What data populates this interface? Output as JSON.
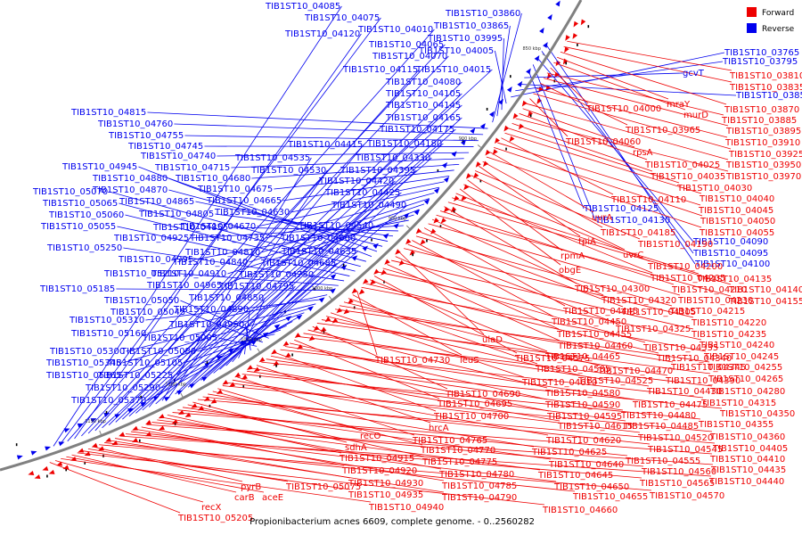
{
  "caption": "Propionibacterium acnes 6609, complete genome. - 0..2560282",
  "legend": [
    {
      "label": "Forward",
      "color": "#ee0000"
    },
    {
      "label": "Reverse",
      "color": "#0000ee"
    }
  ],
  "colors": {
    "forward": "#ee0000",
    "reverse": "#0000ee",
    "backbone": "#808080"
  },
  "tick_labels": [
    "850 kbp",
    "900 kbp",
    "950 kbp",
    "1000 kbp",
    "1050 kbp",
    "1100 kbp",
    "1150 kbp"
  ],
  "reverse_labels": [
    "TIB1ST10_04085",
    "TIB1ST10_04075",
    "TIB1ST10_04010",
    "TIB1ST10_04120",
    "TIB1ST10_04065",
    "TIB1ST10_04070",
    "TIB1ST10_04115",
    "TIB1ST10_04015",
    "TIB1ST10_04080",
    "TIB1ST10_04105",
    "TIB1ST10_04145",
    "TIB1ST10_04165",
    "TIB1ST10_04175",
    "TIB1ST10_04180",
    "TIB1ST10_04415",
    "TIB1ST10_04330",
    "TIB1ST10_04535",
    "TIB1ST10_04530",
    "TIB1ST10_04395",
    "TIB1ST10_04420",
    "TIB1ST10_04425",
    "TIB1ST10_04490",
    "TIB1ST10_04540",
    "TIB1ST10_04600",
    "TIB1ST10_04635",
    "TIB1ST10_04685",
    "TIB1ST10_04750",
    "TIB1ST10_04795",
    "TIB1ST10_04850",
    "TIB1ST10_04890",
    "TIB1ST10_04950",
    "TIB1ST10_05005",
    "TIB1ST10_05045",
    "TIB1ST10_05050",
    "TIB1ST10_05080",
    "TIB1ST10_05105",
    "TIB1ST10_05225",
    "TIB1ST10_05290",
    "TIB1ST10_05370",
    "TIB1ST10_05365",
    "TIB1ST10_05345",
    "TIB1ST10_05300",
    "TIB1ST10_05310",
    "TIB1ST10_05160",
    "TIB1ST10_05185",
    "TIB1ST10_05210",
    "TIB1ST10_05250",
    "TIB1ST10_05055",
    "TIB1ST10_05060",
    "TIB1ST10_05065",
    "TIB1ST10_05070",
    "TIB1ST10_04945",
    "TIB1ST10_04880",
    "TIB1ST10_04870",
    "TIB1ST10_04865",
    "TIB1ST10_04805",
    "TIB1ST10_04855",
    "TIB1ST10_04925",
    "TIB1ST10_04995",
    "TIB1ST10_04910",
    "TIB1ST10_04965",
    "TIB1ST10_04840",
    "TIB1ST10_04810",
    "TIB1ST10_04735",
    "TIB1ST10_04670",
    "TIB1ST10_04630",
    "TIB1ST10_04665",
    "TIB1ST10_04675",
    "TIB1ST10_04680",
    "TIB1ST10_04715",
    "TIB1ST10_04740",
    "TIB1ST10_04745",
    "TIB1ST10_04755",
    "TIB1ST10_04760",
    "TIB1ST10_04815",
    "TIB1ST10_03860",
    "TIB1ST10_03865",
    "TIB1ST10_03995",
    "TIB1ST10_04005",
    "TIB1ST10_03765",
    "TIB1ST10_03795",
    "TIB1ST10_03855",
    "gcvT",
    "TIB1ST10_04125",
    "TIB1ST10_04130",
    "TIB1ST10_04090",
    "TIB1ST10_04095",
    "TIB1ST10_04100"
  ],
  "forward_labels": [
    "TIB1ST10_03810",
    "TIB1ST10_03835",
    "TIB1ST10_03870",
    "mraY",
    "murD",
    "TIB1ST10_04000",
    "TIB1ST10_03885",
    "TIB1ST10_03895",
    "TIB1ST10_03965",
    "TIB1ST10_03910",
    "TIB1ST10_03925",
    "TIB1ST10_04060",
    "TIB1ST10_03950",
    "rpsA",
    "TIB1ST10_04025",
    "TIB1ST10_03970",
    "TIB1ST10_04035",
    "TIB1ST10_04030",
    "TIB1ST10_04040",
    "TIB1ST10_04110",
    "TIB1ST10_04045",
    "TIB1ST10_04050",
    "uvrA",
    "TIB1ST10_04055",
    "TIB1ST10_04185",
    "tpiA",
    "TIB1ST10_04190",
    "uvrC",
    "rpmA",
    "TIB1ST10_04200",
    "obgE",
    "TIB1ST10_04205",
    "TIB1ST10_04135",
    "TIB1ST10_04140",
    "TIB1ST10_04300",
    "TIB1ST10_04210",
    "TIB1ST10_04155",
    "TIB1ST10_04320",
    "TIB1ST10_04230",
    "TIB1ST10_04445",
    "TIB1ST10_04305",
    "TIB1ST10_04215",
    "TIB1ST10_04450",
    "TIB1ST10_04325",
    "TIB1ST10_04220",
    "ulaD",
    "TIB1ST10_04455",
    "TIB1ST10_04235",
    "TIB1ST10_04460",
    "TIB1ST10_04335",
    "TIB1ST10_04240",
    "TIB1ST10_04575",
    "TIB1ST10_04465",
    "TIB1ST10_04340",
    "TIB1ST10_04245",
    "TIB1ST10_04730",
    "leuS",
    "TIB1ST10_04585",
    "TIB1ST10_04470",
    "TIB1ST10_04345",
    "TIB1ST10_04255",
    "TIB1ST10_04610",
    "TIB1ST10_04525",
    "TIB1ST10_04390",
    "TIB1ST10_04265",
    "TIB1ST10_04690",
    "TIB1ST10_04580",
    "TIB1ST10_04430",
    "TIB1ST10_04280",
    "TIB1ST10_04695",
    "TIB1ST10_04590",
    "TIB1ST10_04475",
    "TIB1ST10_04315",
    "TIB1ST10_04700",
    "TIB1ST10_04595",
    "TIB1ST10_04480",
    "TIB1ST10_04350",
    "hrcA",
    "TIB1ST10_04615",
    "TIB1ST10_04485",
    "TIB1ST10_04355",
    "TIB1ST10_04765",
    "TIB1ST10_04620",
    "TIB1ST10_04520",
    "TIB1ST10_04360",
    "recO",
    "TIB1ST10_04770",
    "TIB1ST10_04625",
    "TIB1ST10_04545",
    "TIB1ST10_04405",
    "sdhA",
    "TIB1ST10_04775",
    "TIB1ST10_04640",
    "TIB1ST10_04555",
    "TIB1ST10_04410",
    "TIB1ST10_04915",
    "TIB1ST10_04780",
    "TIB1ST10_04645",
    "TIB1ST10_04560",
    "TIB1ST10_04435",
    "TIB1ST10_04920",
    "TIB1ST10_04785",
    "TIB1ST10_04650",
    "TIB1ST10_04565",
    "TIB1ST10_04440",
    "TIB1ST10_04930",
    "TIB1ST10_04790",
    "TIB1ST10_04655",
    "TIB1ST10_04570",
    "pyrB",
    "TIB1ST10_05075",
    "TIB1ST10_04935",
    "TIB1ST10_04660",
    "carB",
    "aceE",
    "TIB1ST10_04940",
    "recX",
    "TIB1ST10_05205"
  ]
}
